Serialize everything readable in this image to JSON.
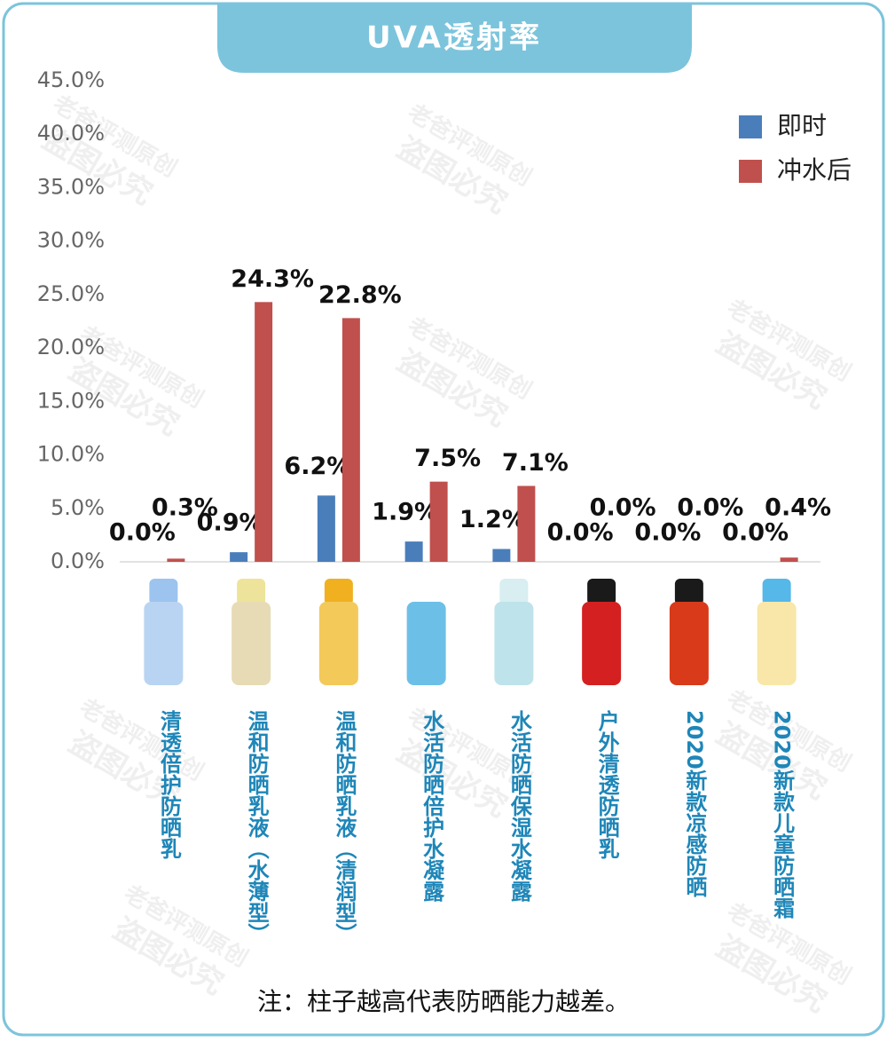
{
  "chart_data": {
    "type": "bar",
    "title": "UVA透射率",
    "categories": [
      "清透倍护防晒乳",
      "温和防晒乳液（水薄型）",
      "温和防晒乳液（清润型）",
      "水活防晒倍护水凝露",
      "水活防晒保湿水凝露",
      "户外清透防晒乳",
      "2020新款凉感防晒",
      "2020新款儿童防晒霜"
    ],
    "series": [
      {
        "name": "即时",
        "color": "#4a7ebb",
        "values": [
          0.0,
          0.9,
          6.2,
          1.9,
          1.2,
          0.0,
          0.0,
          0.0
        ],
        "value_labels": [
          "0.0%",
          "0.9%",
          "6.2%",
          "1.9%",
          "1.2%",
          "0.0%",
          "0.0%",
          "0.0%"
        ]
      },
      {
        "name": "冲水后",
        "color": "#c0504d",
        "values": [
          0.3,
          24.3,
          22.8,
          7.5,
          7.1,
          0.0,
          0.0,
          0.4
        ],
        "value_labels": [
          "0.3%",
          "24.3%",
          "22.8%",
          "7.5%",
          "7.1%",
          "0.0%",
          "0.0%",
          "0.4%"
        ]
      }
    ],
    "ylim": [
      0,
      45
    ],
    "yticks": [
      {
        "value": 0,
        "label": "0.0%"
      },
      {
        "value": 5,
        "label": "5.0%"
      },
      {
        "value": 10,
        "label": "10.0%"
      },
      {
        "value": 15,
        "label": "15.0%"
      },
      {
        "value": 20,
        "label": "20.0%"
      },
      {
        "value": 25,
        "label": "25.0%"
      },
      {
        "value": 30,
        "label": "30.0%"
      },
      {
        "value": 35,
        "label": "35.0%"
      },
      {
        "value": 40,
        "label": "40.0%"
      },
      {
        "value": 45,
        "label": "45.0%"
      }
    ],
    "grid": false,
    "legend": "top-right",
    "note": "注：柱子越高代表防晒能力越差。",
    "watermark": [
      "老爸评测原创",
      "盗图必究"
    ]
  }
}
